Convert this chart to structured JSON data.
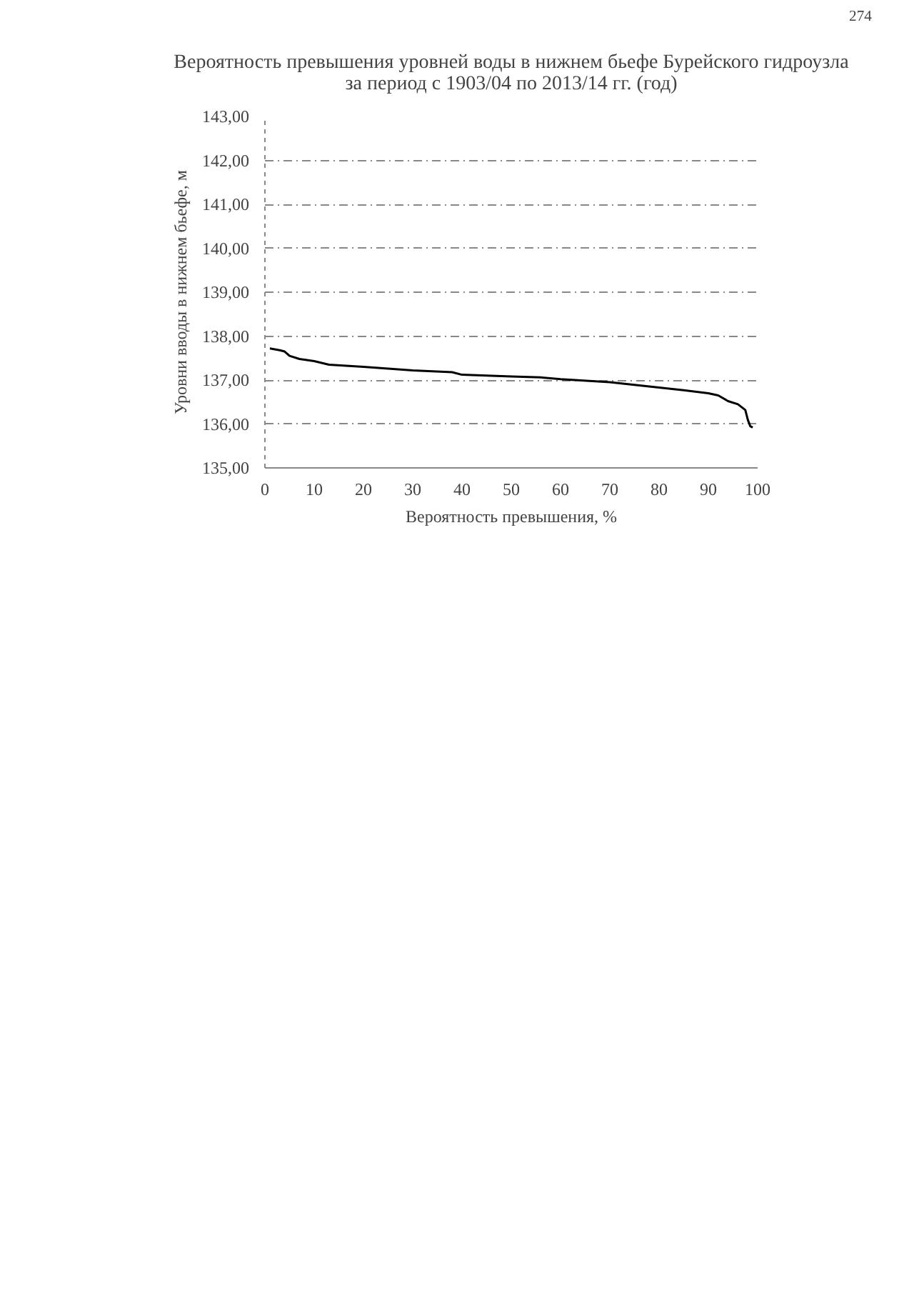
{
  "chart_data": {
    "type": "line",
    "title": "Вероятность превышения уровней воды в нижнем бьефе Бурейского гидроузла\nза период с 1903/04 по 2013/14 гг. (год)",
    "xlabel": "Вероятность превышения, %",
    "ylabel": "Уровни вводы в нижнем бьефе, м",
    "annotations": [
      "274"
    ],
    "series": [
      {
        "color": "#000000",
        "x": [
          1,
          3,
          4,
          5,
          7,
          10,
          13,
          20,
          30,
          38,
          40,
          50,
          56,
          60,
          70,
          80,
          85,
          90,
          92,
          94,
          96,
          97.5,
          98,
          98.5,
          99
        ],
        "values": [
          137.72,
          137.68,
          137.65,
          137.55,
          137.48,
          137.43,
          137.35,
          137.3,
          137.22,
          137.18,
          137.12,
          137.08,
          137.06,
          137.02,
          136.95,
          136.83,
          136.77,
          136.7,
          136.65,
          136.52,
          136.45,
          136.32,
          136.1,
          135.95,
          135.92
        ]
      }
    ],
    "xlim": [
      0,
      100
    ],
    "xticks": [
      0,
      10,
      20,
      30,
      40,
      50,
      60,
      70,
      80,
      90,
      100
    ],
    "ylim": [
      135,
      143
    ],
    "yticks": [
      {
        "value": 135,
        "label": "135,00"
      },
      {
        "value": 136,
        "label": "136,00"
      },
      {
        "value": 137,
        "label": "137,00"
      },
      {
        "value": 138,
        "label": "138,00"
      },
      {
        "value": 139,
        "label": "139,00"
      },
      {
        "value": 140,
        "label": "140,00"
      },
      {
        "value": 141,
        "label": "141,00"
      },
      {
        "value": 142,
        "label": "142,00"
      },
      {
        "value": 143,
        "label": "143,00"
      }
    ],
    "grid": "y",
    "line_style": "solid",
    "marker": "none"
  }
}
